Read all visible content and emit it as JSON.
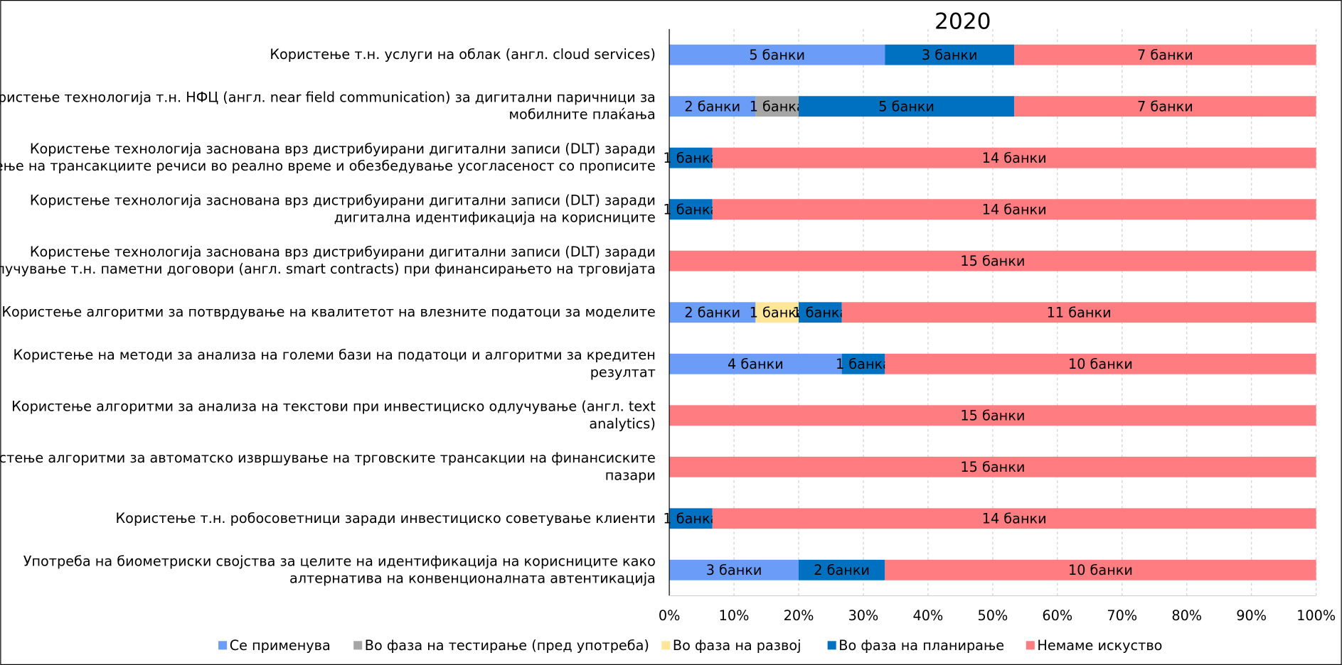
{
  "chart_data": {
    "type": "stacked_barh",
    "title": "2020",
    "categories": [
      [
        "Користење т.н. услуги на облак (англ. cloud services)"
      ],
      [
        "Користење технологија т.н. НФЦ (англ. near field communication) за дигитални паричници за",
        "мобилните плаќања"
      ],
      [
        "Користење технологија заснована врз дистрибуирани дигитални записи (DLT) заради",
        "следење на трансакциите речиси во реално време и обезбедување усогласеност со прописите"
      ],
      [
        "Користење технологија заснована врз дистрибуирани дигитални записи (DLT) заради",
        "дигитална идентификација на корисниците"
      ],
      [
        "Користење технологија заснована врз дистрибуирани дигитални записи (DLT) заради",
        "склучување т.н. паметни договори (англ. smart contracts) при финансирањето на трговијата"
      ],
      [
        "Користење алгоритми за потврдување на квалитетот на влезните податоци за моделите"
      ],
      [
        "Користење на методи за анализа на големи бази на податоци и алгоритми за кредитен",
        "резултат"
      ],
      [
        "Користење алгоритми за анализа на текстови при инвестициско одлучување (англ. text",
        "analytics)"
      ],
      [
        "Користење алгоритми за автоматско извршување на трговските трансакции на финансиските",
        "пазари"
      ],
      [
        "Користење т.н. робосоветници заради инвестициско советување клиенти"
      ],
      [
        "Употреба на биометриски својства за целите на идентификација на корисниците како",
        "алтернатива на конвенционалната автентикација"
      ]
    ],
    "series": [
      {
        "name": "Се применува",
        "color": "#6b9cf7",
        "values": [
          5,
          2,
          0,
          0,
          0,
          2,
          4,
          0,
          0,
          0,
          3
        ],
        "value_labels": [
          "5 банки",
          "2 банки",
          null,
          null,
          null,
          "2 банки",
          "4 банки",
          null,
          null,
          null,
          "3 банки"
        ]
      },
      {
        "name": "Во фаза на тестирање (пред употреба)",
        "color": "#a6a6a6",
        "values": [
          0,
          1,
          0,
          0,
          0,
          0,
          0,
          0,
          0,
          0,
          0
        ],
        "value_labels": [
          null,
          "1 банка",
          null,
          null,
          null,
          null,
          null,
          null,
          null,
          null,
          null
        ]
      },
      {
        "name": "Во фаза на развој",
        "color": "#ffe699",
        "values": [
          0,
          0,
          0,
          0,
          0,
          1,
          0,
          0,
          0,
          0,
          0
        ],
        "value_labels": [
          null,
          null,
          null,
          null,
          null,
          "1 банка",
          null,
          null,
          null,
          null,
          null
        ]
      },
      {
        "name": "Во фаза на планирање",
        "color": "#0070c0",
        "values": [
          3,
          5,
          1,
          1,
          0,
          1,
          1,
          0,
          0,
          1,
          2
        ],
        "value_labels": [
          "3 банки",
          "5 банки",
          "1 банка",
          "1 банка",
          null,
          "1 банка",
          "1 банка",
          null,
          null,
          "1 банка",
          "2 банки"
        ]
      },
      {
        "name": "Немаме искуство",
        "color": "#ff7c80",
        "values": [
          7,
          7,
          14,
          14,
          15,
          11,
          10,
          15,
          15,
          14,
          10
        ],
        "value_labels": [
          "7 банки",
          "7 банки",
          "14 банки",
          "14 банки",
          "15 банки",
          "11 банки",
          "10 банки",
          "15 банки",
          "15 банки",
          "14 банки",
          "10 банки"
        ]
      }
    ],
    "xlim": [
      0,
      15
    ],
    "xticks": [
      {
        "value": 0,
        "label": "0%"
      },
      {
        "value": 1.5,
        "label": "10%"
      },
      {
        "value": 3,
        "label": "20%"
      },
      {
        "value": 4.5,
        "label": "30%"
      },
      {
        "value": 6,
        "label": "40%"
      },
      {
        "value": 7.5,
        "label": "50%"
      },
      {
        "value": 9,
        "label": "60%"
      },
      {
        "value": 10.5,
        "label": "70%"
      },
      {
        "value": 12,
        "label": "80%"
      },
      {
        "value": 13.5,
        "label": "90%"
      },
      {
        "value": 15,
        "label": "100%"
      }
    ],
    "grid": true,
    "legend": "bottom"
  }
}
